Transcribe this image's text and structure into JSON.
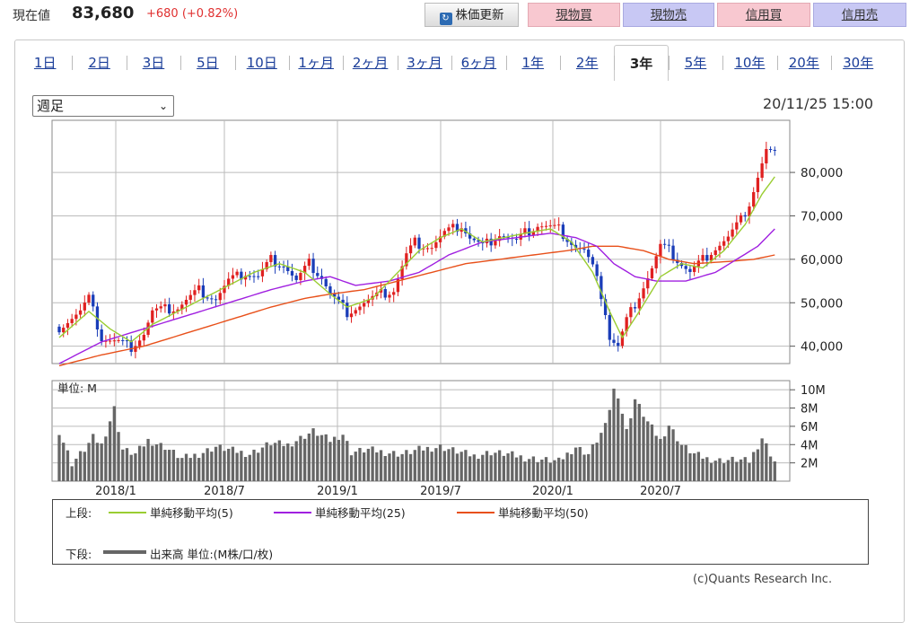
{
  "header": {
    "price_label": "現在値",
    "price_value": "83,680",
    "price_change": "+680 (+0.82%)",
    "refresh_label": "株価更新",
    "buttons": [
      "現物買",
      "現物売",
      "信用買",
      "信用売"
    ]
  },
  "tabs": [
    "1日",
    "2日",
    "3日",
    "5日",
    "10日",
    "1ヶ月",
    "2ヶ月",
    "3ヶ月",
    "6ヶ月",
    "1年",
    "2年",
    "3年",
    "5年",
    "10年",
    "20年",
    "30年"
  ],
  "active_tab": "3年",
  "interval_select": "週足",
  "timestamp": "20/11/25 15:00",
  "legend": {
    "upper_label": "上段:",
    "ma5": "単純移動平均(5)",
    "ma25": "単純移動平均(25)",
    "ma50": "単純移動平均(50)",
    "lower_label": "下段:",
    "volume": "出来高 単位:(M株/口/枚)"
  },
  "copyright": "(c)Quants Research Inc.",
  "colors": {
    "up": "#e02020",
    "down": "#1a3db8",
    "ma5": "#9acd32",
    "ma25": "#a020e0",
    "ma50": "#e8501a",
    "volume": "#666666"
  },
  "chart_data": {
    "type": "candlestick",
    "price_axis": {
      "ticks": [
        "40,000",
        "50,000",
        "60,000",
        "70,000",
        "80,000"
      ],
      "ylim": [
        36000,
        92000
      ]
    },
    "volume_axis": {
      "unit_label": "単位: M",
      "ticks": [
        "2M",
        "4M",
        "6M",
        "8M",
        "10M"
      ],
      "ylim": [
        0,
        11
      ]
    },
    "x_ticks": [
      "2018/1",
      "2018/7",
      "2019/1",
      "2019/7",
      "2020/1",
      "2020/7"
    ],
    "price_path": [
      [
        0,
        44500
      ],
      [
        2,
        46000
      ],
      [
        5,
        48000
      ],
      [
        7,
        51000
      ],
      [
        10,
        42000
      ],
      [
        14,
        41000
      ],
      [
        17,
        40000
      ],
      [
        20,
        43000
      ],
      [
        22,
        48000
      ],
      [
        28,
        49000
      ],
      [
        33,
        53000
      ],
      [
        37,
        51000
      ],
      [
        40,
        55000
      ],
      [
        44,
        57000
      ],
      [
        47,
        56000
      ],
      [
        50,
        60000
      ],
      [
        53,
        59000
      ],
      [
        56,
        55000
      ],
      [
        59,
        59000
      ],
      [
        62,
        56000
      ],
      [
        64,
        52000
      ],
      [
        66,
        50000
      ],
      [
        68,
        48000
      ],
      [
        72,
        50000
      ],
      [
        76,
        52000
      ],
      [
        79,
        53000
      ],
      [
        82,
        61000
      ],
      [
        84,
        64000
      ],
      [
        88,
        63000
      ],
      [
        91,
        66000
      ],
      [
        95,
        68000
      ],
      [
        97,
        65000
      ],
      [
        100,
        63000
      ],
      [
        104,
        66000
      ],
      [
        108,
        64000
      ],
      [
        110,
        66000
      ],
      [
        113,
        68000
      ],
      [
        118,
        67000
      ],
      [
        122,
        63000
      ],
      [
        124,
        62000
      ],
      [
        126,
        58000
      ],
      [
        128,
        52000
      ],
      [
        129,
        48000
      ],
      [
        130,
        42000
      ],
      [
        132,
        40000
      ],
      [
        134,
        46000
      ],
      [
        137,
        52000
      ],
      [
        140,
        58000
      ],
      [
        142,
        63000
      ],
      [
        144,
        62000
      ],
      [
        146,
        60000
      ],
      [
        149,
        57000
      ],
      [
        151,
        59000
      ],
      [
        154,
        62000
      ],
      [
        158,
        65000
      ],
      [
        161,
        69000
      ],
      [
        163,
        73000
      ],
      [
        165,
        79000
      ],
      [
        167,
        85000
      ],
      [
        169,
        84000
      ]
    ],
    "ma5_path": [
      [
        0,
        42000
      ],
      [
        7,
        48000
      ],
      [
        12,
        44000
      ],
      [
        17,
        41000
      ],
      [
        22,
        45000
      ],
      [
        28,
        48000
      ],
      [
        34,
        51000
      ],
      [
        40,
        54000
      ],
      [
        46,
        57000
      ],
      [
        52,
        59000
      ],
      [
        58,
        57000
      ],
      [
        64,
        52000
      ],
      [
        68,
        49000
      ],
      [
        74,
        51000
      ],
      [
        80,
        57000
      ],
      [
        85,
        62000
      ],
      [
        90,
        65000
      ],
      [
        95,
        67000
      ],
      [
        100,
        64000
      ],
      [
        105,
        65000
      ],
      [
        110,
        66000
      ],
      [
        116,
        67000
      ],
      [
        121,
        64000
      ],
      [
        126,
        57000
      ],
      [
        130,
        48000
      ],
      [
        133,
        42000
      ],
      [
        137,
        48000
      ],
      [
        142,
        56000
      ],
      [
        147,
        59000
      ],
      [
        152,
        58000
      ],
      [
        157,
        62000
      ],
      [
        162,
        68000
      ],
      [
        166,
        75000
      ],
      [
        169,
        79000
      ]
    ],
    "ma25_path": [
      [
        0,
        36000
      ],
      [
        10,
        41000
      ],
      [
        20,
        44000
      ],
      [
        30,
        47000
      ],
      [
        40,
        50000
      ],
      [
        50,
        53000
      ],
      [
        58,
        55000
      ],
      [
        64,
        56000
      ],
      [
        70,
        54000
      ],
      [
        78,
        55000
      ],
      [
        85,
        57000
      ],
      [
        92,
        61000
      ],
      [
        100,
        64000
      ],
      [
        108,
        65000
      ],
      [
        116,
        66000
      ],
      [
        122,
        65000
      ],
      [
        127,
        63000
      ],
      [
        131,
        59000
      ],
      [
        136,
        56000
      ],
      [
        141,
        55000
      ],
      [
        148,
        55000
      ],
      [
        155,
        57000
      ],
      [
        160,
        60000
      ],
      [
        165,
        63000
      ],
      [
        169,
        67000
      ]
    ],
    "ma50_path": [
      [
        0,
        35500
      ],
      [
        10,
        38000
      ],
      [
        20,
        40000
      ],
      [
        30,
        43000
      ],
      [
        40,
        46000
      ],
      [
        50,
        49000
      ],
      [
        58,
        51000
      ],
      [
        64,
        52000
      ],
      [
        72,
        53000
      ],
      [
        80,
        55000
      ],
      [
        88,
        57000
      ],
      [
        96,
        59000
      ],
      [
        104,
        60000
      ],
      [
        112,
        61000
      ],
      [
        120,
        62000
      ],
      [
        126,
        63000
      ],
      [
        132,
        63000
      ],
      [
        138,
        62000
      ],
      [
        144,
        60000
      ],
      [
        150,
        59000
      ],
      [
        158,
        59500
      ],
      [
        164,
        60000
      ],
      [
        169,
        61000
      ]
    ],
    "volume_path": [
      [
        0,
        5.5
      ],
      [
        3,
        2
      ],
      [
        6,
        3.5
      ],
      [
        8,
        4.8
      ],
      [
        10,
        4
      ],
      [
        13,
        8
      ],
      [
        15,
        3.5
      ],
      [
        18,
        3
      ],
      [
        21,
        4.5
      ],
      [
        25,
        3.8
      ],
      [
        29,
        2.5
      ],
      [
        33,
        3
      ],
      [
        37,
        3.8
      ],
      [
        41,
        3.4
      ],
      [
        45,
        3
      ],
      [
        50,
        4.2
      ],
      [
        54,
        4
      ],
      [
        60,
        5.5
      ],
      [
        64,
        4.5
      ],
      [
        67,
        5.2
      ],
      [
        69,
        3.2
      ],
      [
        73,
        3.5
      ],
      [
        77,
        3.2
      ],
      [
        81,
        3
      ],
      [
        85,
        3.5
      ],
      [
        90,
        3.8
      ],
      [
        94,
        3.3
      ],
      [
        98,
        2.8
      ],
      [
        102,
        3.2
      ],
      [
        106,
        3
      ],
      [
        110,
        2.6
      ],
      [
        114,
        2.4
      ],
      [
        118,
        2.2
      ],
      [
        122,
        3.8
      ],
      [
        125,
        3
      ],
      [
        127,
        4.5
      ],
      [
        129,
        6
      ],
      [
        131,
        10
      ],
      [
        132,
        9.5
      ],
      [
        134,
        5.5
      ],
      [
        136,
        9
      ],
      [
        139,
        6.5
      ],
      [
        142,
        4.5
      ],
      [
        144,
        6.2
      ],
      [
        147,
        4
      ],
      [
        150,
        3
      ],
      [
        153,
        2.5
      ],
      [
        156,
        2.3
      ],
      [
        160,
        2.4
      ],
      [
        163,
        2.2
      ],
      [
        166,
        4.8
      ],
      [
        169,
        2.2
      ]
    ],
    "series": [
      {
        "name": "単純移動平均(5)"
      },
      {
        "name": "単純移動平均(25)"
      },
      {
        "name": "単純移動平均(50)"
      },
      {
        "name": "出来高"
      }
    ]
  }
}
